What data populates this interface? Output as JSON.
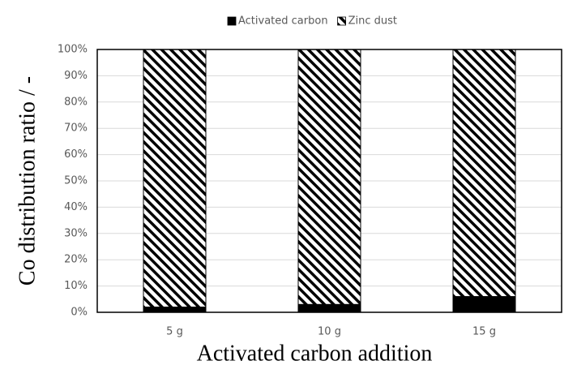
{
  "chart_data": {
    "type": "stacked-bar",
    "categories": [
      "5 g",
      "10 g",
      "15 g"
    ],
    "series": [
      {
        "name": "Activated carbon",
        "color": "#000000",
        "values": [
          2,
          3,
          6
        ]
      },
      {
        "name": "Zinc dust",
        "color": "#000000",
        "pattern": "diagonal-hatch",
        "values": [
          98,
          97,
          94
        ]
      }
    ],
    "ylim": [
      0,
      100
    ],
    "yticks": [
      {
        "value": 0,
        "label": "0%"
      },
      {
        "value": 10,
        "label": "10%"
      },
      {
        "value": 20,
        "label": "20%"
      },
      {
        "value": 30,
        "label": "30%"
      },
      {
        "value": 40,
        "label": "40%"
      },
      {
        "value": 50,
        "label": "50%"
      },
      {
        "value": 60,
        "label": "60%"
      },
      {
        "value": 70,
        "label": "70%"
      },
      {
        "value": 80,
        "label": "80%"
      },
      {
        "value": 90,
        "label": "90%"
      },
      {
        "value": 100,
        "label": "100%"
      }
    ],
    "ylabel": "Co distribution ratio / -",
    "xlabel": "Activated carbon addition",
    "grid": true,
    "legend": "top"
  }
}
